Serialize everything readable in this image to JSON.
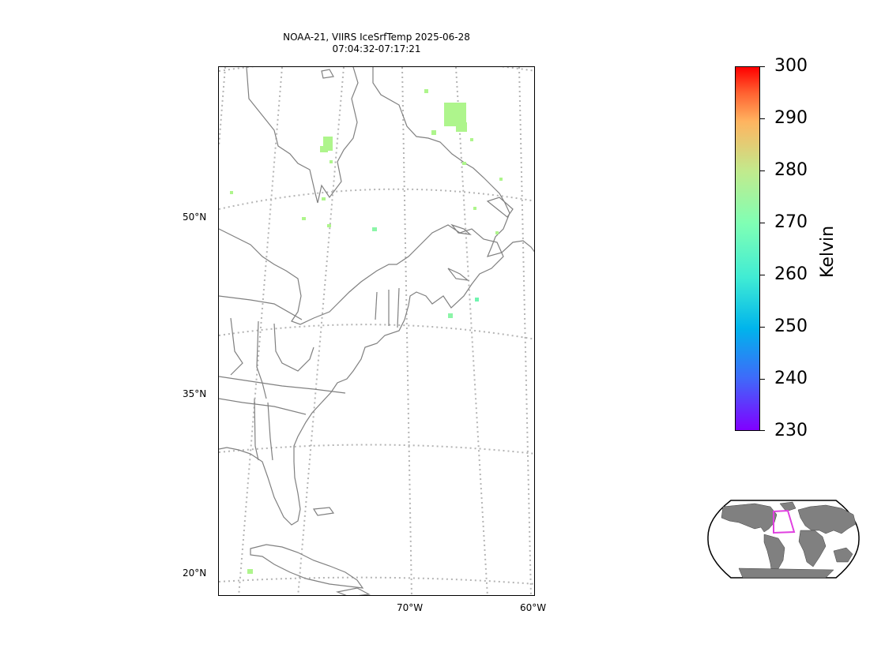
{
  "title": {
    "line1": "NOAA-21, VIIRS IceSrfTemp 2025-06-28",
    "line2": "07:04:32-07:17:21"
  },
  "map": {
    "lat_labels": [
      "50°N",
      "35°N",
      "20°N"
    ],
    "lon_labels": [
      "70°W",
      "60°W"
    ],
    "coastline_color": "#808080",
    "graticule_color": "#b4b4b4",
    "data_points_kelvin": [
      268,
      268,
      268,
      269,
      268,
      268,
      268,
      269,
      268,
      267,
      268,
      268,
      260,
      262,
      268,
      268,
      262
    ]
  },
  "colorbar": {
    "title": "Kelvin",
    "ticks": [
      "300",
      "290",
      "280",
      "270",
      "260",
      "250",
      "240",
      "230"
    ],
    "min": 230,
    "max": 300,
    "colormap": "rainbow"
  },
  "inset": {
    "name": "world-locator-map",
    "land_color": "#808080",
    "box_color": "#e040e0"
  }
}
